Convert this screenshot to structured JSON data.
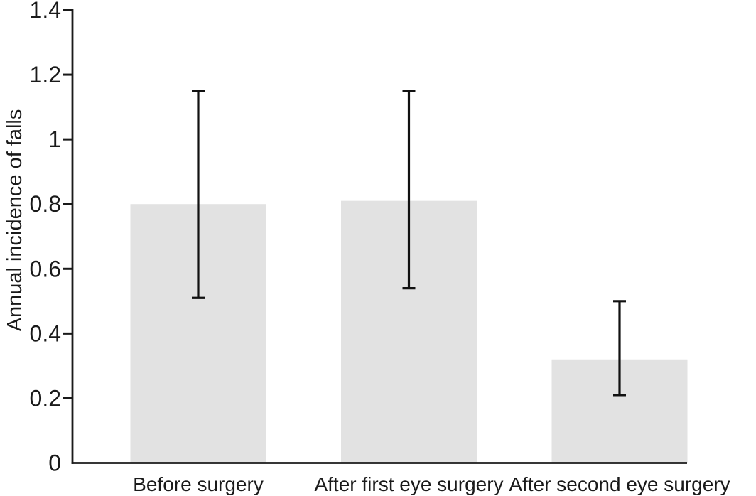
{
  "chart_data": {
    "type": "bar",
    "title": "",
    "xlabel": "",
    "ylabel": "Annual incidence of falls",
    "categories": [
      "Before surgery",
      "After first eye surgery",
      "After second eye surgery"
    ],
    "values": [
      0.8,
      0.81,
      0.32
    ],
    "error_bars": {
      "low": [
        0.51,
        0.54,
        0.21
      ],
      "high": [
        1.15,
        1.15,
        0.5
      ]
    },
    "ylim": [
      0,
      1.4
    ],
    "yticks": [
      {
        "value": 0,
        "label": "0"
      },
      {
        "value": 0.2,
        "label": "0.2"
      },
      {
        "value": 0.4,
        "label": "0.4"
      },
      {
        "value": 0.6,
        "label": "0.6"
      },
      {
        "value": 0.8,
        "label": "0.8"
      },
      {
        "value": 1,
        "label": "1"
      },
      {
        "value": 1.2,
        "label": "1.2"
      },
      {
        "value": 1.4,
        "label": "1.4"
      }
    ],
    "grid": false,
    "legend_position": "none",
    "colors": {
      "bar_fill": "#e2e2e2",
      "axis": "#1a1a1a",
      "error_bar": "#111111",
      "text": "#1a1a1a",
      "background": "#ffffff"
    }
  }
}
